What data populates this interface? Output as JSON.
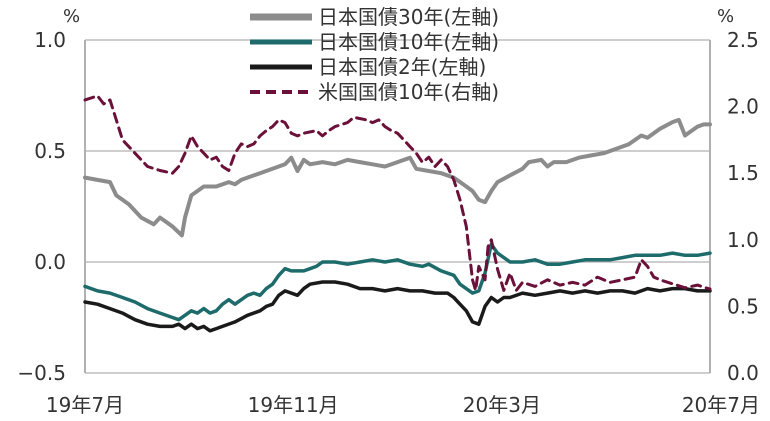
{
  "chart_data": {
    "type": "line",
    "left_axis": {
      "unit": "%",
      "ylim": [
        -0.5,
        1.0
      ],
      "ticks": [
        "1.0",
        "0.5",
        "0.0",
        "−0.5"
      ]
    },
    "right_axis": {
      "unit": "%",
      "ylim": [
        0.0,
        2.5
      ],
      "ticks": [
        "2.5",
        "2.0",
        "1.5",
        "1.0",
        "0.5",
        "0.0"
      ]
    },
    "x_tick_labels": [
      "19年7月",
      "19年11月",
      "20年3月",
      "20年7月"
    ],
    "x_range": [
      "2019-07",
      "2020-07"
    ],
    "grid": "horizontal",
    "legend_position": "top",
    "series": [
      {
        "name": "日本国債30年(左軸)",
        "axis": "left",
        "color": "#8c8c8c",
        "style": "solid",
        "points": [
          [
            0.0,
            0.38
          ],
          [
            0.02,
            0.37
          ],
          [
            0.04,
            0.36
          ],
          [
            0.05,
            0.3
          ],
          [
            0.07,
            0.26
          ],
          [
            0.09,
            0.2
          ],
          [
            0.11,
            0.17
          ],
          [
            0.12,
            0.2
          ],
          [
            0.13,
            0.18
          ],
          [
            0.14,
            0.16
          ],
          [
            0.155,
            0.12
          ],
          [
            0.16,
            0.2
          ],
          [
            0.17,
            0.3
          ],
          [
            0.19,
            0.34
          ],
          [
            0.21,
            0.34
          ],
          [
            0.23,
            0.36
          ],
          [
            0.24,
            0.35
          ],
          [
            0.25,
            0.37
          ],
          [
            0.26,
            0.38
          ],
          [
            0.27,
            0.39
          ],
          [
            0.28,
            0.4
          ],
          [
            0.3,
            0.42
          ],
          [
            0.32,
            0.44
          ],
          [
            0.33,
            0.47
          ],
          [
            0.34,
            0.41
          ],
          [
            0.35,
            0.46
          ],
          [
            0.36,
            0.44
          ],
          [
            0.38,
            0.45
          ],
          [
            0.4,
            0.44
          ],
          [
            0.42,
            0.46
          ],
          [
            0.44,
            0.45
          ],
          [
            0.46,
            0.44
          ],
          [
            0.48,
            0.43
          ],
          [
            0.5,
            0.45
          ],
          [
            0.52,
            0.47
          ],
          [
            0.53,
            0.42
          ],
          [
            0.55,
            0.41
          ],
          [
            0.57,
            0.4
          ],
          [
            0.59,
            0.38
          ],
          [
            0.61,
            0.34
          ],
          [
            0.62,
            0.32
          ],
          [
            0.63,
            0.28
          ],
          [
            0.64,
            0.27
          ],
          [
            0.65,
            0.32
          ],
          [
            0.66,
            0.36
          ],
          [
            0.68,
            0.39
          ],
          [
            0.7,
            0.42
          ],
          [
            0.71,
            0.45
          ],
          [
            0.73,
            0.46
          ],
          [
            0.74,
            0.43
          ],
          [
            0.75,
            0.45
          ],
          [
            0.77,
            0.45
          ],
          [
            0.79,
            0.47
          ],
          [
            0.81,
            0.48
          ],
          [
            0.83,
            0.49
          ],
          [
            0.85,
            0.51
          ],
          [
            0.87,
            0.53
          ],
          [
            0.89,
            0.57
          ],
          [
            0.9,
            0.56
          ],
          [
            0.92,
            0.6
          ],
          [
            0.94,
            0.63
          ],
          [
            0.95,
            0.64
          ],
          [
            0.96,
            0.57
          ],
          [
            0.97,
            0.59
          ],
          [
            0.98,
            0.61
          ],
          [
            0.99,
            0.62
          ],
          [
            1.0,
            0.62
          ]
        ]
      },
      {
        "name": "日本国債10年(左軸)",
        "axis": "left",
        "color": "#1e6b6b",
        "style": "solid",
        "points": [
          [
            0.0,
            -0.11
          ],
          [
            0.02,
            -0.13
          ],
          [
            0.04,
            -0.14
          ],
          [
            0.06,
            -0.16
          ],
          [
            0.08,
            -0.18
          ],
          [
            0.1,
            -0.21
          ],
          [
            0.12,
            -0.23
          ],
          [
            0.14,
            -0.25
          ],
          [
            0.15,
            -0.26
          ],
          [
            0.16,
            -0.24
          ],
          [
            0.17,
            -0.22
          ],
          [
            0.18,
            -0.23
          ],
          [
            0.19,
            -0.21
          ],
          [
            0.2,
            -0.23
          ],
          [
            0.21,
            -0.22
          ],
          [
            0.22,
            -0.19
          ],
          [
            0.23,
            -0.17
          ],
          [
            0.24,
            -0.19
          ],
          [
            0.25,
            -0.17
          ],
          [
            0.26,
            -0.15
          ],
          [
            0.27,
            -0.14
          ],
          [
            0.28,
            -0.15
          ],
          [
            0.29,
            -0.12
          ],
          [
            0.3,
            -0.1
          ],
          [
            0.31,
            -0.06
          ],
          [
            0.32,
            -0.03
          ],
          [
            0.33,
            -0.04
          ],
          [
            0.35,
            -0.04
          ],
          [
            0.36,
            -0.03
          ],
          [
            0.37,
            -0.02
          ],
          [
            0.38,
            0.0
          ],
          [
            0.4,
            0.0
          ],
          [
            0.42,
            -0.01
          ],
          [
            0.44,
            0.0
          ],
          [
            0.46,
            0.01
          ],
          [
            0.48,
            0.0
          ],
          [
            0.5,
            0.01
          ],
          [
            0.52,
            -0.01
          ],
          [
            0.54,
            -0.02
          ],
          [
            0.55,
            -0.01
          ],
          [
            0.57,
            -0.04
          ],
          [
            0.59,
            -0.06
          ],
          [
            0.6,
            -0.1
          ],
          [
            0.62,
            -0.14
          ],
          [
            0.63,
            -0.13
          ],
          [
            0.64,
            -0.05
          ],
          [
            0.65,
            0.08
          ],
          [
            0.66,
            0.04
          ],
          [
            0.67,
            0.02
          ],
          [
            0.68,
            0.0
          ],
          [
            0.7,
            0.0
          ],
          [
            0.72,
            0.01
          ],
          [
            0.74,
            -0.01
          ],
          [
            0.76,
            -0.01
          ],
          [
            0.78,
            0.0
          ],
          [
            0.8,
            0.01
          ],
          [
            0.82,
            0.01
          ],
          [
            0.84,
            0.01
          ],
          [
            0.86,
            0.02
          ],
          [
            0.88,
            0.03
          ],
          [
            0.9,
            0.03
          ],
          [
            0.92,
            0.03
          ],
          [
            0.94,
            0.04
          ],
          [
            0.96,
            0.03
          ],
          [
            0.98,
            0.03
          ],
          [
            1.0,
            0.04
          ]
        ]
      },
      {
        "name": "日本国債2年(左軸)",
        "axis": "left",
        "color": "#1a1a1a",
        "style": "solid",
        "points": [
          [
            0.0,
            -0.18
          ],
          [
            0.02,
            -0.19
          ],
          [
            0.04,
            -0.21
          ],
          [
            0.06,
            -0.23
          ],
          [
            0.08,
            -0.26
          ],
          [
            0.1,
            -0.28
          ],
          [
            0.12,
            -0.29
          ],
          [
            0.14,
            -0.29
          ],
          [
            0.15,
            -0.28
          ],
          [
            0.16,
            -0.3
          ],
          [
            0.17,
            -0.28
          ],
          [
            0.18,
            -0.3
          ],
          [
            0.19,
            -0.29
          ],
          [
            0.2,
            -0.31
          ],
          [
            0.21,
            -0.3
          ],
          [
            0.22,
            -0.29
          ],
          [
            0.24,
            -0.27
          ],
          [
            0.26,
            -0.24
          ],
          [
            0.28,
            -0.22
          ],
          [
            0.29,
            -0.2
          ],
          [
            0.3,
            -0.19
          ],
          [
            0.31,
            -0.15
          ],
          [
            0.32,
            -0.13
          ],
          [
            0.34,
            -0.15
          ],
          [
            0.35,
            -0.12
          ],
          [
            0.36,
            -0.1
          ],
          [
            0.38,
            -0.09
          ],
          [
            0.4,
            -0.09
          ],
          [
            0.42,
            -0.1
          ],
          [
            0.44,
            -0.12
          ],
          [
            0.46,
            -0.12
          ],
          [
            0.48,
            -0.13
          ],
          [
            0.5,
            -0.12
          ],
          [
            0.52,
            -0.13
          ],
          [
            0.54,
            -0.13
          ],
          [
            0.56,
            -0.14
          ],
          [
            0.58,
            -0.14
          ],
          [
            0.59,
            -0.16
          ],
          [
            0.6,
            -0.19
          ],
          [
            0.61,
            -0.22
          ],
          [
            0.62,
            -0.27
          ],
          [
            0.63,
            -0.28
          ],
          [
            0.64,
            -0.2
          ],
          [
            0.65,
            -0.16
          ],
          [
            0.66,
            -0.18
          ],
          [
            0.67,
            -0.16
          ],
          [
            0.68,
            -0.16
          ],
          [
            0.7,
            -0.14
          ],
          [
            0.72,
            -0.15
          ],
          [
            0.74,
            -0.14
          ],
          [
            0.76,
            -0.13
          ],
          [
            0.78,
            -0.14
          ],
          [
            0.8,
            -0.13
          ],
          [
            0.82,
            -0.14
          ],
          [
            0.84,
            -0.13
          ],
          [
            0.86,
            -0.13
          ],
          [
            0.88,
            -0.14
          ],
          [
            0.9,
            -0.12
          ],
          [
            0.92,
            -0.13
          ],
          [
            0.94,
            -0.12
          ],
          [
            0.96,
            -0.12
          ],
          [
            0.98,
            -0.13
          ],
          [
            1.0,
            -0.13
          ]
        ]
      },
      {
        "name": "米国国債10年(右軸)",
        "axis": "right",
        "color": "#6b1038",
        "style": "dashed",
        "points": [
          [
            0.0,
            2.05
          ],
          [
            0.02,
            2.08
          ],
          [
            0.03,
            2.02
          ],
          [
            0.04,
            2.05
          ],
          [
            0.05,
            1.9
          ],
          [
            0.06,
            1.75
          ],
          [
            0.08,
            1.65
          ],
          [
            0.1,
            1.55
          ],
          [
            0.12,
            1.52
          ],
          [
            0.14,
            1.5
          ],
          [
            0.15,
            1.55
          ],
          [
            0.16,
            1.65
          ],
          [
            0.17,
            1.78
          ],
          [
            0.18,
            1.7
          ],
          [
            0.19,
            1.65
          ],
          [
            0.2,
            1.6
          ],
          [
            0.21,
            1.62
          ],
          [
            0.22,
            1.55
          ],
          [
            0.23,
            1.52
          ],
          [
            0.24,
            1.65
          ],
          [
            0.25,
            1.72
          ],
          [
            0.26,
            1.7
          ],
          [
            0.27,
            1.72
          ],
          [
            0.28,
            1.78
          ],
          [
            0.29,
            1.82
          ],
          [
            0.3,
            1.85
          ],
          [
            0.31,
            1.9
          ],
          [
            0.32,
            1.88
          ],
          [
            0.33,
            1.8
          ],
          [
            0.34,
            1.78
          ],
          [
            0.35,
            1.8
          ],
          [
            0.37,
            1.82
          ],
          [
            0.38,
            1.78
          ],
          [
            0.39,
            1.82
          ],
          [
            0.4,
            1.85
          ],
          [
            0.42,
            1.88
          ],
          [
            0.43,
            1.92
          ],
          [
            0.45,
            1.9
          ],
          [
            0.46,
            1.88
          ],
          [
            0.47,
            1.9
          ],
          [
            0.48,
            1.85
          ],
          [
            0.49,
            1.82
          ],
          [
            0.5,
            1.8
          ],
          [
            0.51,
            1.75
          ],
          [
            0.52,
            1.7
          ],
          [
            0.53,
            1.65
          ],
          [
            0.54,
            1.58
          ],
          [
            0.55,
            1.62
          ],
          [
            0.56,
            1.55
          ],
          [
            0.57,
            1.6
          ],
          [
            0.58,
            1.55
          ],
          [
            0.59,
            1.45
          ],
          [
            0.6,
            1.3
          ],
          [
            0.61,
            1.1
          ],
          [
            0.62,
            0.7
          ],
          [
            0.625,
            0.62
          ],
          [
            0.63,
            0.8
          ],
          [
            0.64,
            0.7
          ],
          [
            0.645,
            0.95
          ],
          [
            0.65,
            1.0
          ],
          [
            0.66,
            0.78
          ],
          [
            0.67,
            0.62
          ],
          [
            0.68,
            0.75
          ],
          [
            0.69,
            0.62
          ],
          [
            0.7,
            0.68
          ],
          [
            0.72,
            0.65
          ],
          [
            0.74,
            0.7
          ],
          [
            0.76,
            0.66
          ],
          [
            0.78,
            0.68
          ],
          [
            0.8,
            0.66
          ],
          [
            0.82,
            0.72
          ],
          [
            0.84,
            0.68
          ],
          [
            0.86,
            0.7
          ],
          [
            0.88,
            0.72
          ],
          [
            0.89,
            0.85
          ],
          [
            0.9,
            0.8
          ],
          [
            0.91,
            0.72
          ],
          [
            0.92,
            0.7
          ],
          [
            0.94,
            0.67
          ],
          [
            0.96,
            0.64
          ],
          [
            0.98,
            0.66
          ],
          [
            1.0,
            0.63
          ]
        ]
      }
    ]
  }
}
